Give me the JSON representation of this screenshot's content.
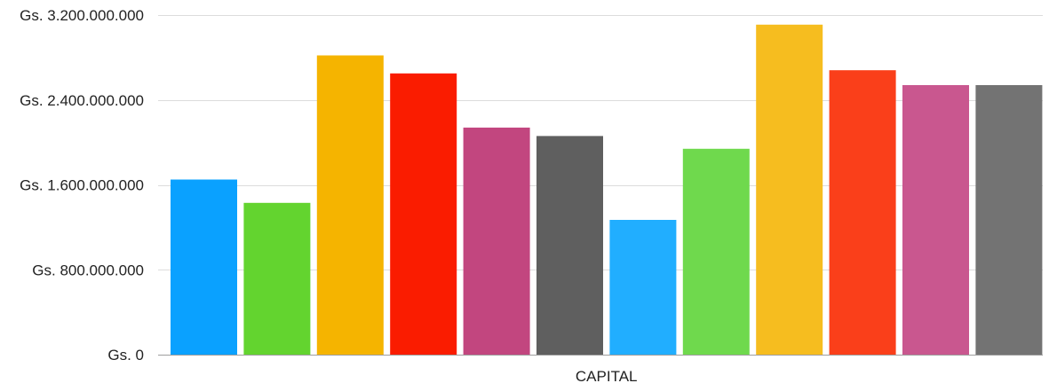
{
  "chart_data": {
    "type": "bar",
    "categories": [
      "CAPITAL"
    ],
    "series": [
      {
        "values": [
          1650000000
        ],
        "color": "#0aa1ff"
      },
      {
        "values": [
          1430000000
        ],
        "color": "#63d42f"
      },
      {
        "values": [
          2820000000
        ],
        "color": "#f5b400"
      },
      {
        "values": [
          2650000000
        ],
        "color": "#fa1c00"
      },
      {
        "values": [
          2140000000
        ],
        "color": "#c2467f"
      },
      {
        "values": [
          2060000000
        ],
        "color": "#5f5f5f"
      },
      {
        "values": [
          1270000000
        ],
        "color": "#21aeff"
      },
      {
        "values": [
          1940000000
        ],
        "color": "#6fd94d"
      },
      {
        "values": [
          3110000000
        ],
        "color": "#f6bd1f"
      },
      {
        "values": [
          2680000000
        ],
        "color": "#fa3f1a"
      },
      {
        "values": [
          2540000000
        ],
        "color": "#c9578f"
      },
      {
        "values": [
          2540000000
        ],
        "color": "#737373"
      }
    ],
    "ylim": [
      0,
      3200000000
    ],
    "yticks": [
      0,
      800000000,
      1600000000,
      2400000000,
      3200000000
    ],
    "ytick_labels": [
      "Gs. 0",
      "Gs. 800.000.000",
      "Gs. 1.600.000.000",
      "Gs. 2.400.000.000",
      "Gs. 3.200.000.000"
    ],
    "xlabel": "",
    "ylabel": "",
    "grid": true,
    "legend": "none"
  }
}
